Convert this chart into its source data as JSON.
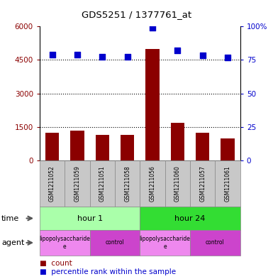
{
  "title": "GDS5251 / 1377761_at",
  "samples": [
    "GSM1211052",
    "GSM1211059",
    "GSM1211051",
    "GSM1211058",
    "GSM1211056",
    "GSM1211060",
    "GSM1211057",
    "GSM1211061"
  ],
  "counts": [
    1250,
    1320,
    1130,
    1130,
    5000,
    1700,
    1250,
    1000
  ],
  "percentiles": [
    79,
    79,
    77.5,
    77.5,
    99,
    82,
    78.5,
    77
  ],
  "bar_color": "#8B0000",
  "dot_color": "#0000CC",
  "left_ylim": [
    0,
    6000
  ],
  "right_ylim": [
    0,
    100
  ],
  "left_yticks": [
    0,
    1500,
    3000,
    4500,
    6000
  ],
  "right_yticks": [
    0,
    25,
    50,
    75,
    100
  ],
  "right_yticklabels": [
    "0",
    "25",
    "50",
    "75",
    "100%"
  ],
  "time_groups": [
    {
      "label": "hour 1",
      "start": 0,
      "end": 4,
      "color": "#AAFFAA"
    },
    {
      "label": "hour 24",
      "start": 4,
      "end": 8,
      "color": "#33DD33"
    }
  ],
  "agent_groups": [
    {
      "label": "lipopolysaccharide\ne",
      "start": 0,
      "end": 2,
      "color": "#EE88EE"
    },
    {
      "label": "control",
      "start": 2,
      "end": 4,
      "color": "#CC44CC"
    },
    {
      "label": "lipopolysaccharide\ne",
      "start": 4,
      "end": 6,
      "color": "#EE88EE"
    },
    {
      "label": "control",
      "start": 6,
      "end": 8,
      "color": "#CC44CC"
    }
  ],
  "time_label": "time",
  "agent_label": "agent",
  "legend_count_label": "count",
  "legend_percentile_label": "percentile rank within the sample",
  "xlabel_bg_color": "#C8C8C8",
  "dotted_line_color": "#000000",
  "border_color": "#888888"
}
